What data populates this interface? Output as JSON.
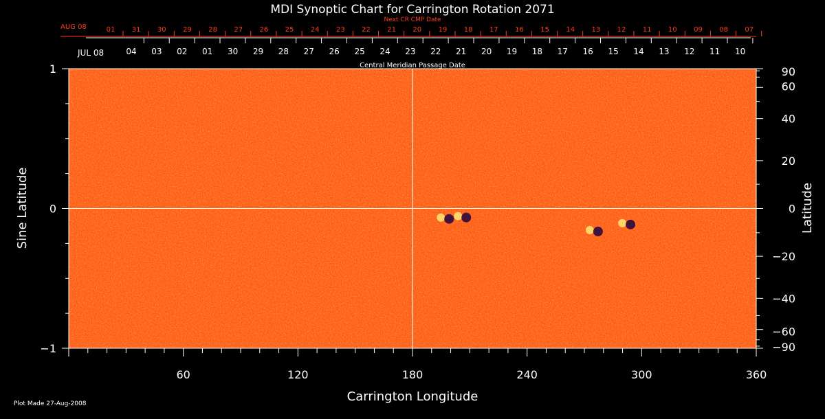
{
  "chart_data": {
    "type": "heatmap",
    "title": "MDI Synoptic Chart for Carrington Rotation 2071",
    "xlabel": "Carrington Longitude",
    "ylabel_left": "Sine Latitude",
    "ylabel_right": "Latitude",
    "xlim": [
      0,
      360
    ],
    "ylim": [
      -1,
      1
    ],
    "x_ticks": [
      60,
      120,
      180,
      240,
      300,
      360
    ],
    "y_ticks_left": [
      {
        "value": 1,
        "label": "1"
      },
      {
        "value": 0,
        "label": "0"
      },
      {
        "value": -1,
        "label": "−1"
      }
    ],
    "y_ticks_right": [
      {
        "value": 90,
        "label": "90"
      },
      {
        "value": 60,
        "label": "60"
      },
      {
        "value": 40,
        "label": "40"
      },
      {
        "value": 20,
        "label": "20"
      },
      {
        "value": 0,
        "label": "0"
      },
      {
        "value": -20,
        "label": "−20"
      },
      {
        "value": -40,
        "label": "−40"
      },
      {
        "value": -60,
        "label": "−60"
      },
      {
        "value": -90,
        "label": "−90"
      }
    ],
    "reference_lines": {
      "longitude": 180,
      "sine_latitude": 0
    },
    "cmp_axis": {
      "label": "Central Meridian Passage Date",
      "month_label": "JUL 08",
      "dates": [
        "04",
        "03",
        "02",
        "01",
        "30",
        "29",
        "28",
        "27",
        "26",
        "25",
        "24",
        "23",
        "22",
        "21",
        "20",
        "19",
        "18",
        "17",
        "16",
        "15",
        "14",
        "13",
        "12",
        "11",
        "10"
      ]
    },
    "next_cmp_axis": {
      "label": "Next CR CMP Date",
      "month_label": "AUG 08",
      "dates": [
        "01",
        "31",
        "30",
        "29",
        "28",
        "27",
        "26",
        "25",
        "24",
        "23",
        "22",
        "21",
        "20",
        "19",
        "18",
        "17",
        "16",
        "15",
        "14",
        "13",
        "12",
        "11",
        "10",
        "09",
        "08",
        "07"
      ]
    },
    "active_regions": [
      {
        "longitude": 197,
        "sine_latitude": -0.06
      },
      {
        "longitude": 206,
        "sine_latitude": -0.05
      },
      {
        "longitude": 275,
        "sine_latitude": -0.15
      },
      {
        "longitude": 292,
        "sine_latitude": -0.1
      }
    ],
    "colors": {
      "background": "#000000",
      "field": "#ff4a0e",
      "positive_flux": "#ffe070",
      "negative_flux": "#2a0a40",
      "next_axis": "#ff3a1a",
      "text": "#ffffff"
    }
  },
  "footer": "Plot Made 27-Aug-2008"
}
